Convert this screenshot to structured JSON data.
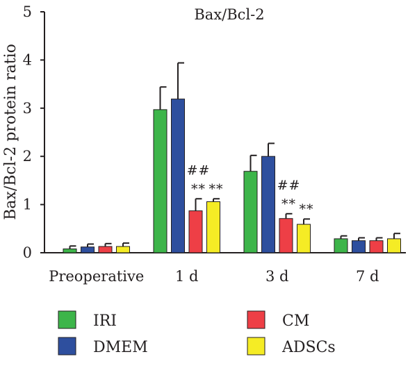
{
  "chart_data": {
    "type": "bar",
    "title": "Bax/Bcl-2",
    "xlabel": "",
    "ylabel": "Bax/Bcl-2 protein ratio",
    "ylim": [
      0,
      5
    ],
    "yticks": [
      0,
      1,
      2,
      3,
      4,
      5
    ],
    "categories": [
      "Preoperative",
      "1 d",
      "3 d",
      "7 d"
    ],
    "series": [
      {
        "name": "IRI",
        "color": "#3db54a",
        "values": [
          0.08,
          2.97,
          1.69,
          0.29
        ],
        "errors": [
          0.06,
          0.47,
          0.33,
          0.06
        ]
      },
      {
        "name": "DMEM",
        "color": "#2e4f9e",
        "values": [
          0.12,
          3.19,
          2.0,
          0.25
        ],
        "errors": [
          0.06,
          0.75,
          0.27,
          0.06
        ]
      },
      {
        "name": "CM",
        "color": "#ee3f46",
        "values": [
          0.13,
          0.87,
          0.71,
          0.25
        ],
        "errors": [
          0.06,
          0.25,
          0.1,
          0.06
        ]
      },
      {
        "name": "ADSCs",
        "color": "#f5ec25",
        "values": [
          0.13,
          1.06,
          0.59,
          0.29
        ],
        "errors": [
          0.07,
          0.06,
          0.11,
          0.11
        ]
      }
    ],
    "annotations": [
      {
        "category": "1 d",
        "series": "CM",
        "lines": [
          "##",
          "**"
        ]
      },
      {
        "category": "1 d",
        "series": "ADSCs",
        "lines": [
          "**"
        ]
      },
      {
        "category": "3 d",
        "series": "CM",
        "lines": [
          "##",
          "**"
        ]
      },
      {
        "category": "3 d",
        "series": "ADSCs",
        "lines": [
          "**"
        ]
      }
    ],
    "legend": {
      "placement": "bottom",
      "columns": 2
    }
  }
}
